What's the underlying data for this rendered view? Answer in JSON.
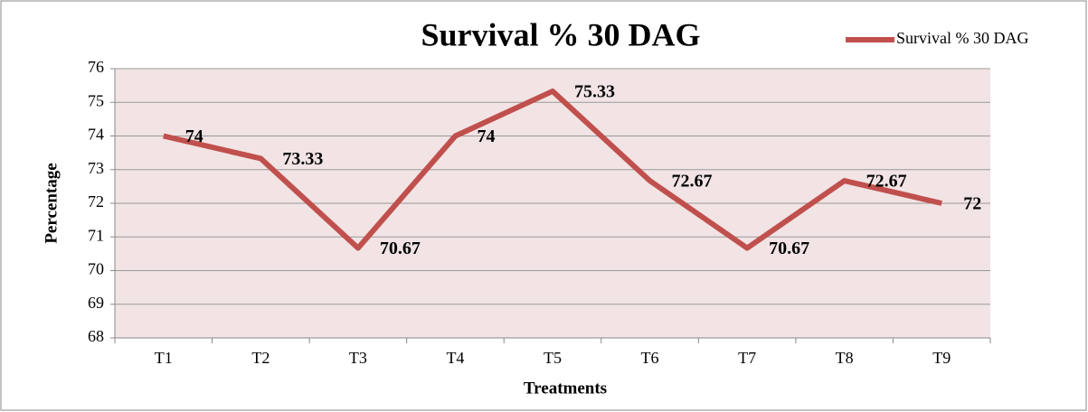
{
  "chart_data": {
    "type": "line",
    "title": "Survival % 30 DAG",
    "x_label": "Treatments",
    "y_label": "Percentage",
    "categories": [
      "T1",
      "T2",
      "T3",
      "T4",
      "T5",
      "T6",
      "T7",
      "T8",
      "T9"
    ],
    "series": [
      {
        "name": "Survival % 30 DAG",
        "color": "#c0504d",
        "values": [
          74,
          73.33,
          70.67,
          74,
          75.33,
          72.67,
          70.67,
          72.67,
          72
        ]
      }
    ],
    "ylim": [
      68,
      76
    ],
    "yticks": [
      68,
      69,
      70,
      71,
      72,
      73,
      74,
      75,
      76
    ],
    "grid": true,
    "legend": "top-right",
    "data_labels": true
  }
}
